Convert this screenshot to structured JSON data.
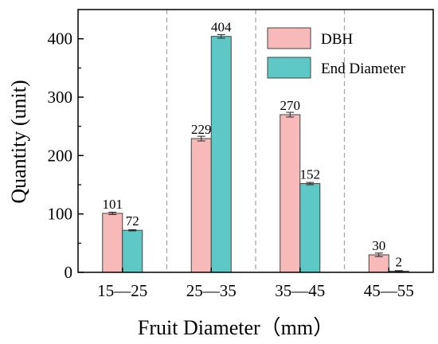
{
  "chart_data": {
    "type": "bar",
    "categories": [
      "15—25",
      "25—35",
      "35—45",
      "45—55"
    ],
    "series": [
      {
        "name": "DBH",
        "values": [
          101,
          229,
          270,
          30
        ],
        "error": [
          2,
          4,
          4,
          3
        ],
        "color": "#f8b9b9"
      },
      {
        "name": "End Diameter",
        "values": [
          72,
          404,
          152,
          2
        ],
        "error": [
          1,
          3,
          2,
          1
        ],
        "color": "#5ec8c6"
      }
    ],
    "data_labels": [
      [
        "101",
        "229",
        "270",
        "30"
      ],
      [
        "72",
        "404",
        "152",
        "2"
      ]
    ],
    "xlabel": "Fruit Diameter（mm）",
    "ylabel": "Quantity (unit)",
    "ylim": [
      0,
      450
    ],
    "yticks": [
      0,
      100,
      200,
      300,
      400
    ],
    "ytick_labels": [
      "0",
      "100",
      "200",
      "300",
      "400"
    ],
    "category_separators": "dashed",
    "legend_position": "top-right"
  }
}
